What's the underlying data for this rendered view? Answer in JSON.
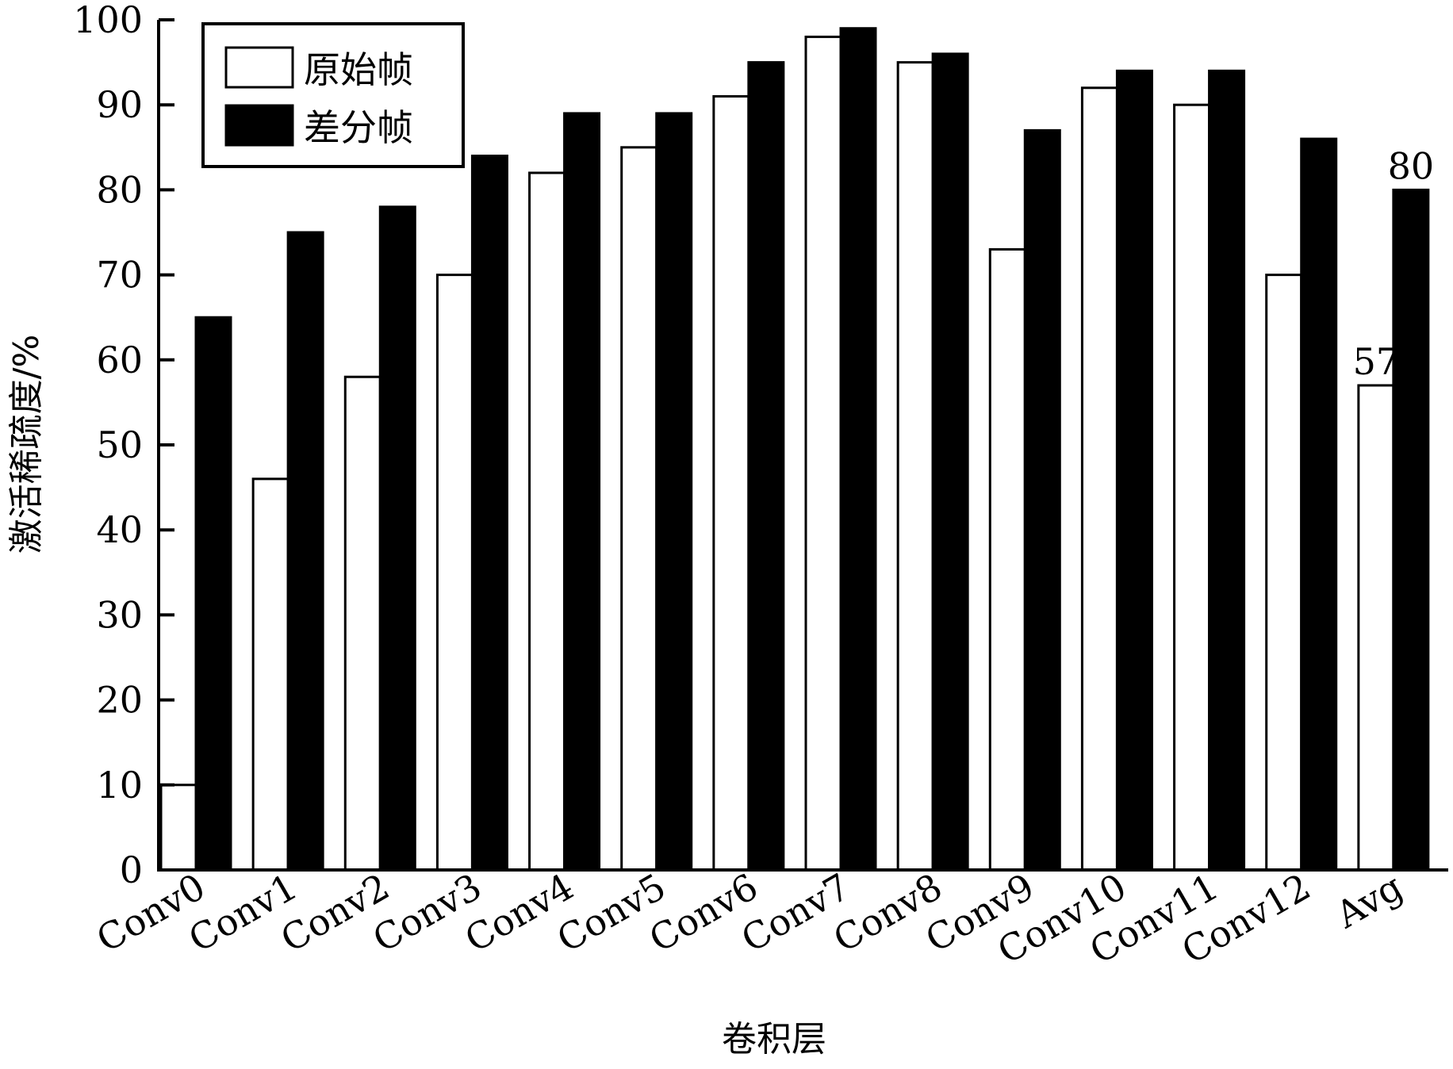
{
  "chart_data": {
    "type": "bar",
    "xlabel": "卷积层",
    "ylabel": "激活稀疏度/%",
    "ylim": [
      0,
      100
    ],
    "yticks": [
      0,
      10,
      20,
      30,
      40,
      50,
      60,
      70,
      80,
      90,
      100
    ],
    "categories": [
      "Conv0",
      "Conv1",
      "Conv2",
      "Conv3",
      "Conv4",
      "Conv5",
      "Conv6",
      "Conv7",
      "Conv8",
      "Conv9",
      "Conv10",
      "Conv11",
      "Conv12",
      "Avg"
    ],
    "series": [
      {
        "name": "原始帧",
        "fill": "#ffffff",
        "values": [
          10,
          46,
          58,
          70,
          82,
          85,
          91,
          98,
          95,
          73,
          92,
          90,
          70,
          57
        ]
      },
      {
        "name": "差分帧",
        "fill": "#000000",
        "values": [
          65,
          75,
          78,
          84,
          89,
          89,
          95,
          99,
          96,
          87,
          94,
          94,
          86,
          80
        ]
      }
    ],
    "annotations": [
      {
        "series": 0,
        "category": "Avg",
        "text": "57"
      },
      {
        "series": 1,
        "category": "Avg",
        "text": "80"
      }
    ],
    "legend_position": "top-left",
    "grid": false
  }
}
